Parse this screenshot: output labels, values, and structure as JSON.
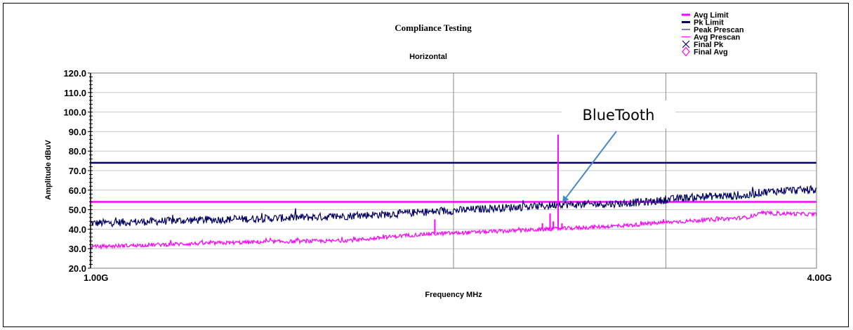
{
  "chart_data": {
    "type": "line",
    "title": "Compliance Testing",
    "subtitle": "Horizontal",
    "xlabel": "Frequency MHz",
    "ylabel": "Amplitude dBuV",
    "x_scale": "log",
    "x_range_mhz": [
      1000,
      4000
    ],
    "x_tick_labels": [
      {
        "value": 1000,
        "label": "1.00G"
      },
      {
        "value": 4000,
        "label": "4.00G"
      }
    ],
    "x_gridlines_mhz": [
      2000,
      3000
    ],
    "ylim": [
      20,
      120
    ],
    "y_ticks": [
      {
        "value": 120,
        "label": "120.0"
      },
      {
        "value": 110,
        "label": "110.0"
      },
      {
        "value": 100,
        "label": "100.0"
      },
      {
        "value": 90,
        "label": "90.0"
      },
      {
        "value": 80,
        "label": "80.0"
      },
      {
        "value": 70,
        "label": "70.0"
      },
      {
        "value": 60,
        "label": "60.0"
      },
      {
        "value": 50,
        "label": "50.0"
      },
      {
        "value": 40,
        "label": "40.0"
      },
      {
        "value": 30,
        "label": "30.0"
      },
      {
        "value": 20,
        "label": "20.0"
      }
    ],
    "grid": true,
    "legend_position": "top-right",
    "legend": [
      {
        "name": "Avg Limit",
        "symbol": "thick-line",
        "color": "#ff00ff"
      },
      {
        "name": "Pk Limit",
        "symbol": "thick-line",
        "color": "#000066"
      },
      {
        "name": "Peak Prescan",
        "symbol": "thin-line",
        "color": "#000066"
      },
      {
        "name": "Avg Prescan",
        "symbol": "thin-line",
        "color": "#ff00ff"
      },
      {
        "name": "Final Pk",
        "symbol": "x-mark",
        "color": "#000066"
      },
      {
        "name": "Final Avg",
        "symbol": "diamond",
        "color": "#ff00ff"
      }
    ],
    "series": [
      {
        "name": "Avg Limit",
        "color": "#ff00ff",
        "x": [
          1000,
          4000
        ],
        "y": [
          54,
          54
        ]
      },
      {
        "name": "Pk Limit",
        "color": "#000066",
        "x": [
          1000,
          4000
        ],
        "y": [
          74,
          74
        ]
      },
      {
        "name": "Peak Prescan",
        "color": "#000066",
        "x": [
          1000,
          1200,
          1400,
          1600,
          1800,
          2000,
          2200,
          2400,
          2450,
          2500,
          2700,
          2900,
          3100,
          3300,
          3500,
          3600,
          3800,
          4000
        ],
        "y": [
          43,
          44.5,
          45.5,
          46.5,
          48,
          49.5,
          51,
          52,
          53,
          52.5,
          53,
          54,
          56,
          57,
          57,
          59,
          60,
          60
        ],
        "spread": 4
      },
      {
        "name": "Avg Prescan",
        "color": "#ff00ff",
        "x": [
          1000,
          1200,
          1400,
          1600,
          1700,
          1800,
          1900,
          2000,
          2200,
          2400,
          2600,
          2800,
          3000,
          3200,
          3400,
          3500,
          3600,
          3800,
          4000
        ],
        "y": [
          31,
          32.5,
          33.5,
          34,
          35,
          36.5,
          37.5,
          38,
          39,
          40,
          41,
          42,
          43.5,
          44.5,
          45.5,
          46,
          48,
          48,
          47.5
        ],
        "spread": 2,
        "spikes": [
          {
            "x": 1930,
            "y": 45
          },
          {
            "x": 2370,
            "y": 43
          },
          {
            "x": 2405,
            "y": 48
          },
          {
            "x": 2420,
            "y": 44
          },
          {
            "x": 2442,
            "y": 88.5
          },
          {
            "x": 2460,
            "y": 43
          }
        ]
      }
    ],
    "annotations": [
      {
        "text": "BlueTooth",
        "arrow_to": {
          "x": 2442,
          "y": 54
        }
      }
    ]
  }
}
